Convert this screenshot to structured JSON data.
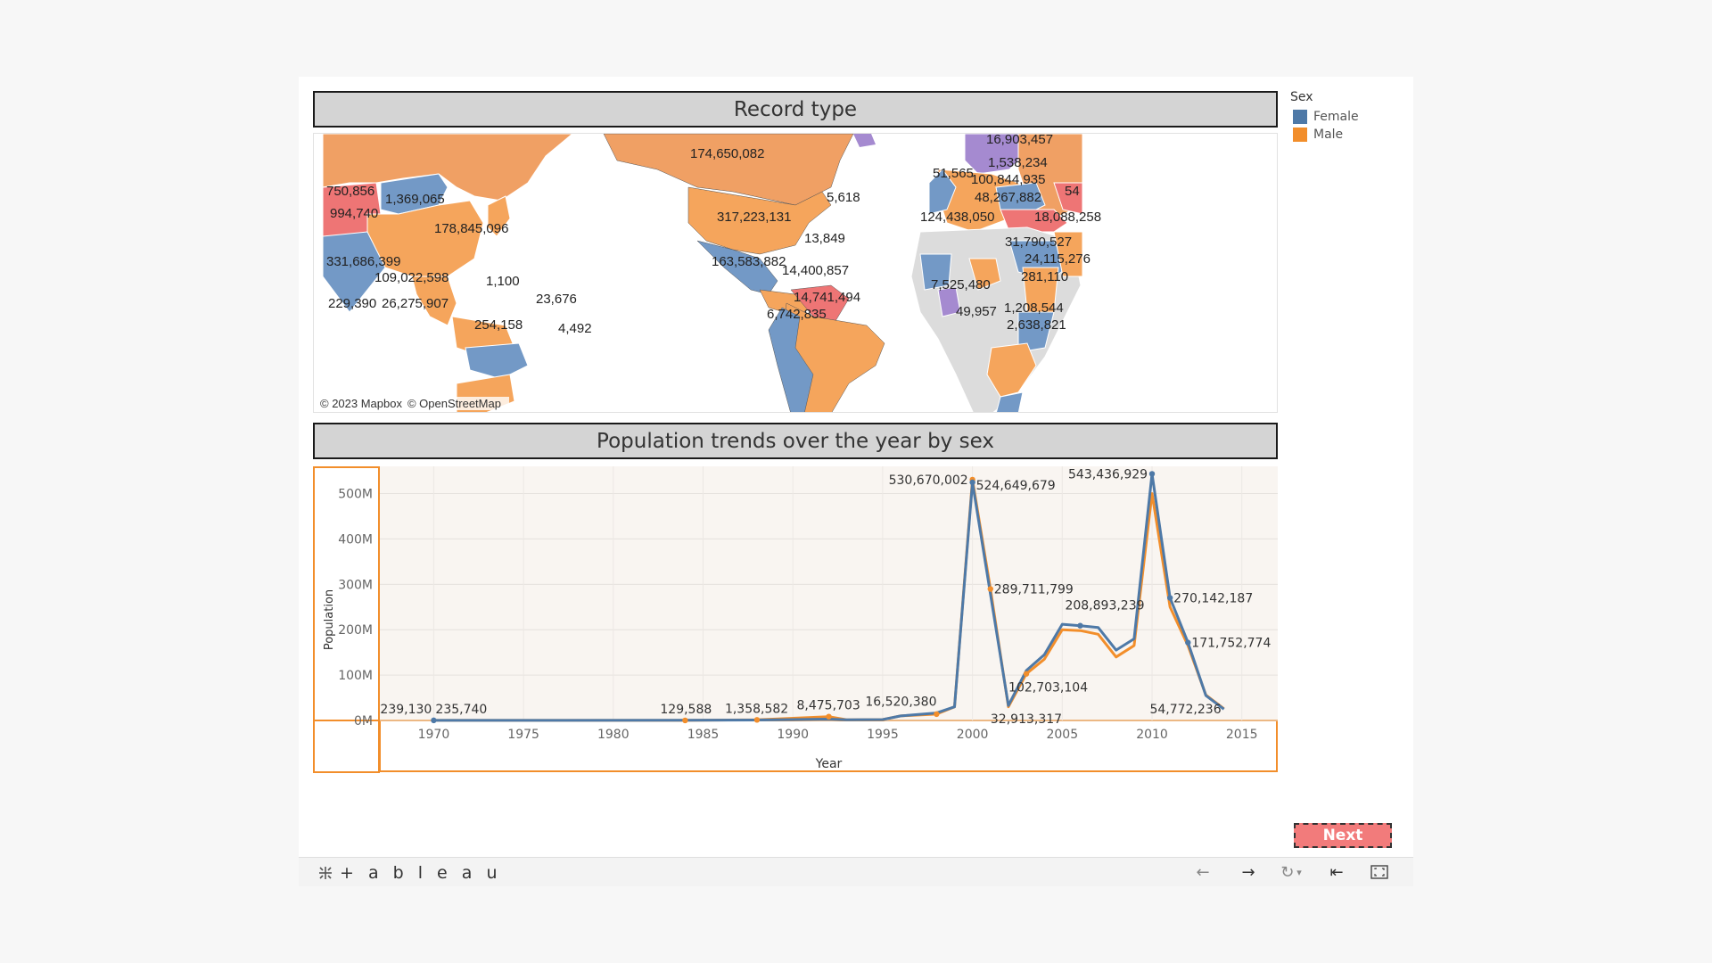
{
  "dashboard": {
    "map_title": "Record type",
    "chart_title": "Population trends over the year by sex",
    "next_label": "Next"
  },
  "legend": {
    "title": "Sex",
    "items": [
      {
        "label": "Female",
        "color": "#4e79a7"
      },
      {
        "label": "Male",
        "color": "#f28e2b"
      }
    ]
  },
  "map": {
    "attribution": [
      "© 2023 Mapbox",
      "© OpenStreetMap"
    ],
    "colors": {
      "female": "#7399c6",
      "male": "#f5a55c",
      "red": "#ee7575",
      "purple": "#a58ad0",
      "nodata": "#dcdcdc"
    },
    "labels": [
      "750,856",
      "1,369,065",
      "994,740",
      "178,845,096",
      "331,686,399",
      "109,022,598",
      "229,390",
      "26,275,907",
      "1,100",
      "23,676",
      "4,492",
      "254,158",
      "174,650,082",
      "5,618",
      "317,223,131",
      "13,849",
      "163,583,882",
      "14,400,857",
      "14,741,494",
      "6,742,835",
      "16,903,457",
      "1,538,234",
      "51,565",
      "100,844,935",
      "48,267,882",
      "124,438,050",
      "18,088,258",
      "54",
      "31,790,527",
      "24,115,276",
      "281,110",
      "7,525,480",
      "49,957",
      "1,208,544",
      "2,638,821"
    ]
  },
  "chart_data": {
    "type": "line",
    "title": "Population trends over the year by sex",
    "xlabel": "Year",
    "ylabel": "Population",
    "xlim": [
      1967,
      2017
    ],
    "ylim": [
      0,
      560000000
    ],
    "x_ticks": [
      1970,
      1975,
      1980,
      1985,
      1990,
      1995,
      2000,
      2005,
      2010,
      2015
    ],
    "y_ticks": [
      {
        "value": 0,
        "label": "0M"
      },
      {
        "value": 100000000,
        "label": "100M"
      },
      {
        "value": 200000000,
        "label": "200M"
      },
      {
        "value": 300000000,
        "label": "300M"
      },
      {
        "value": 400000000,
        "label": "400M"
      },
      {
        "value": 500000000,
        "label": "500M"
      }
    ],
    "grid": true,
    "series": [
      {
        "name": "Female",
        "color": "#4e79a7",
        "points": [
          [
            1970,
            239130
          ],
          [
            1984,
            300000
          ],
          [
            1988,
            1000000
          ],
          [
            1992,
            3000000
          ],
          [
            1993,
            1500000
          ],
          [
            1995,
            2000000
          ],
          [
            1996,
            10000000
          ],
          [
            1998,
            16520380
          ],
          [
            1999,
            30000000
          ],
          [
            2000,
            524649679
          ],
          [
            2002,
            32913317
          ],
          [
            2003,
            110000000
          ],
          [
            2004,
            145000000
          ],
          [
            2005,
            212000000
          ],
          [
            2006,
            208893239
          ],
          [
            2007,
            205000000
          ],
          [
            2008,
            155000000
          ],
          [
            2009,
            180000000
          ],
          [
            2010,
            543436929
          ],
          [
            2011,
            270142187
          ],
          [
            2012,
            171752774
          ],
          [
            2013,
            54772236
          ],
          [
            2014,
            25000000
          ]
        ]
      },
      {
        "name": "Male",
        "color": "#f28e2b",
        "points": [
          [
            1970,
            235740
          ],
          [
            1984,
            129588
          ],
          [
            1988,
            1358582
          ],
          [
            1992,
            8475703
          ],
          [
            1993,
            1500000
          ],
          [
            1995,
            2000000
          ],
          [
            1996,
            10000000
          ],
          [
            1998,
            14000000
          ],
          [
            1999,
            30000000
          ],
          [
            2000,
            530670002
          ],
          [
            2001,
            289711799
          ],
          [
            2002,
            30000000
          ],
          [
            2003,
            102703104
          ],
          [
            2004,
            135000000
          ],
          [
            2005,
            200000000
          ],
          [
            2006,
            198000000
          ],
          [
            2007,
            190000000
          ],
          [
            2008,
            140000000
          ],
          [
            2009,
            165000000
          ],
          [
            2010,
            500000000
          ],
          [
            2011,
            250000000
          ],
          [
            2012,
            165000000
          ],
          [
            2013,
            56000000
          ],
          [
            2014,
            26000000
          ]
        ]
      }
    ],
    "data_labels": [
      {
        "text": "239,130",
        "x": 1970,
        "y": 239130
      },
      {
        "text": "235,740",
        "x": 1970,
        "y": 235740
      },
      {
        "text": "129,588",
        "x": 1984,
        "y": 129588
      },
      {
        "text": "1,358,582",
        "x": 1988,
        "y": 1358582
      },
      {
        "text": "8,475,703",
        "x": 1992,
        "y": 8475703
      },
      {
        "text": "16,520,380",
        "x": 1998,
        "y": 16520380
      },
      {
        "text": "530,670,002",
        "x": 2000,
        "y": 530670002
      },
      {
        "text": "524,649,679",
        "x": 2000,
        "y": 524649679
      },
      {
        "text": "289,711,799",
        "x": 2001,
        "y": 289711799
      },
      {
        "text": "32,913,317",
        "x": 2002,
        "y": 32913317
      },
      {
        "text": "208,893,239",
        "x": 2006,
        "y": 208893239
      },
      {
        "text": "102,703,104",
        "x": 2003,
        "y": 102703104
      },
      {
        "text": "543,436,929",
        "x": 2010,
        "y": 543436929
      },
      {
        "text": "270,142,187",
        "x": 2011,
        "y": 270142187
      },
      {
        "text": "171,752,774",
        "x": 2012,
        "y": 171752774
      },
      {
        "text": "54,772,236",
        "x": 2013,
        "y": 54772236
      }
    ]
  },
  "toolbar": {
    "brand": "+ a b l e a u"
  }
}
